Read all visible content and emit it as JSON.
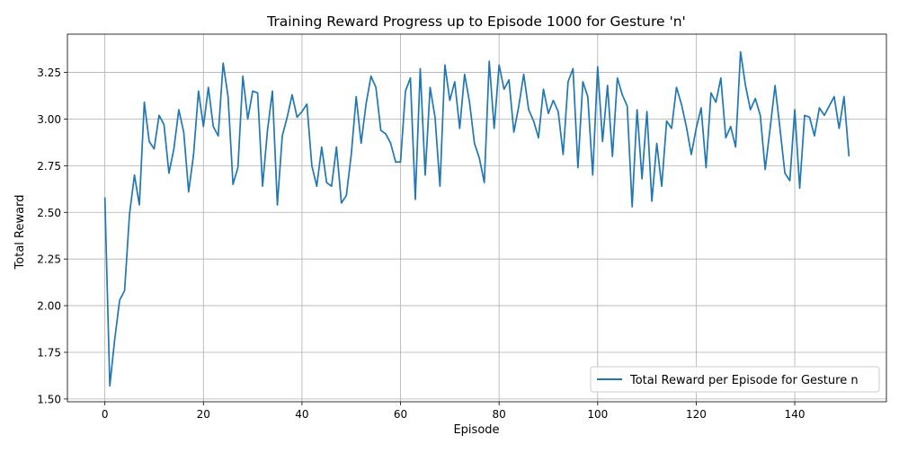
{
  "chart_data": {
    "type": "line",
    "title": "Training Reward Progress up to Episode 1000 for Gesture 'n'",
    "xlabel": "Episode",
    "ylabel": "Total Reward",
    "xlim": [
      -7.6,
      158.6
    ],
    "ylim": [
      1.485,
      3.455
    ],
    "xticks": [
      0,
      20,
      40,
      60,
      80,
      100,
      120,
      140
    ],
    "xtick_labels": [
      "0",
      "20",
      "40",
      "60",
      "80",
      "100",
      "120",
      "140"
    ],
    "yticks": [
      1.5,
      1.75,
      2.0,
      2.25,
      2.5,
      2.75,
      3.0,
      3.25
    ],
    "ytick_labels": [
      "1.50",
      "1.75",
      "2.00",
      "2.25",
      "2.50",
      "2.75",
      "3.00",
      "3.25"
    ],
    "grid": true,
    "legend_location": "lower-right",
    "series": [
      {
        "name": "Total Reward per Episode for Gesture n",
        "color": "#1f77b4",
        "values": [
          2.58,
          1.57,
          1.82,
          2.03,
          2.08,
          2.49,
          2.7,
          2.54,
          3.09,
          2.88,
          2.84,
          3.02,
          2.97,
          2.71,
          2.84,
          3.05,
          2.93,
          2.61,
          2.81,
          3.15,
          2.96,
          3.17,
          2.96,
          2.91,
          3.3,
          3.12,
          2.65,
          2.74,
          3.23,
          3.0,
          3.15,
          3.14,
          2.64,
          2.94,
          3.15,
          2.54,
          2.91,
          3.01,
          3.13,
          3.01,
          3.04,
          3.08,
          2.75,
          2.64,
          2.85,
          2.66,
          2.64,
          2.85,
          2.55,
          2.59,
          2.81,
          3.12,
          2.87,
          3.08,
          3.23,
          3.17,
          2.94,
          2.92,
          2.87,
          2.77,
          2.77,
          3.15,
          3.22,
          2.57,
          3.27,
          2.7,
          3.17,
          3.01,
          2.64,
          3.29,
          3.1,
          3.2,
          2.95,
          3.24,
          3.09,
          2.87,
          2.79,
          2.66,
          3.31,
          2.95,
          3.29,
          3.16,
          3.21,
          2.93,
          3.07,
          3.24,
          3.05,
          2.99,
          2.9,
          3.16,
          3.03,
          3.1,
          3.04,
          2.81,
          3.2,
          3.27,
          2.74,
          3.2,
          3.12,
          2.7,
          3.28,
          2.88,
          3.18,
          2.8,
          3.22,
          3.13,
          3.07,
          2.53,
          3.05,
          2.68,
          3.04,
          2.56,
          2.87,
          2.64,
          2.99,
          2.95,
          3.17,
          3.08,
          2.96,
          2.81,
          2.95,
          3.06,
          2.74,
          3.14,
          3.09,
          3.22,
          2.9,
          2.96,
          2.85,
          3.36,
          3.18,
          3.05,
          3.11,
          3.02,
          2.73,
          2.95,
          3.18,
          2.95,
          2.71,
          2.67,
          3.05,
          2.63,
          3.02,
          3.01,
          2.91,
          3.06,
          3.02,
          3.07,
          3.12,
          2.95,
          3.12,
          2.8
        ]
      }
    ]
  }
}
